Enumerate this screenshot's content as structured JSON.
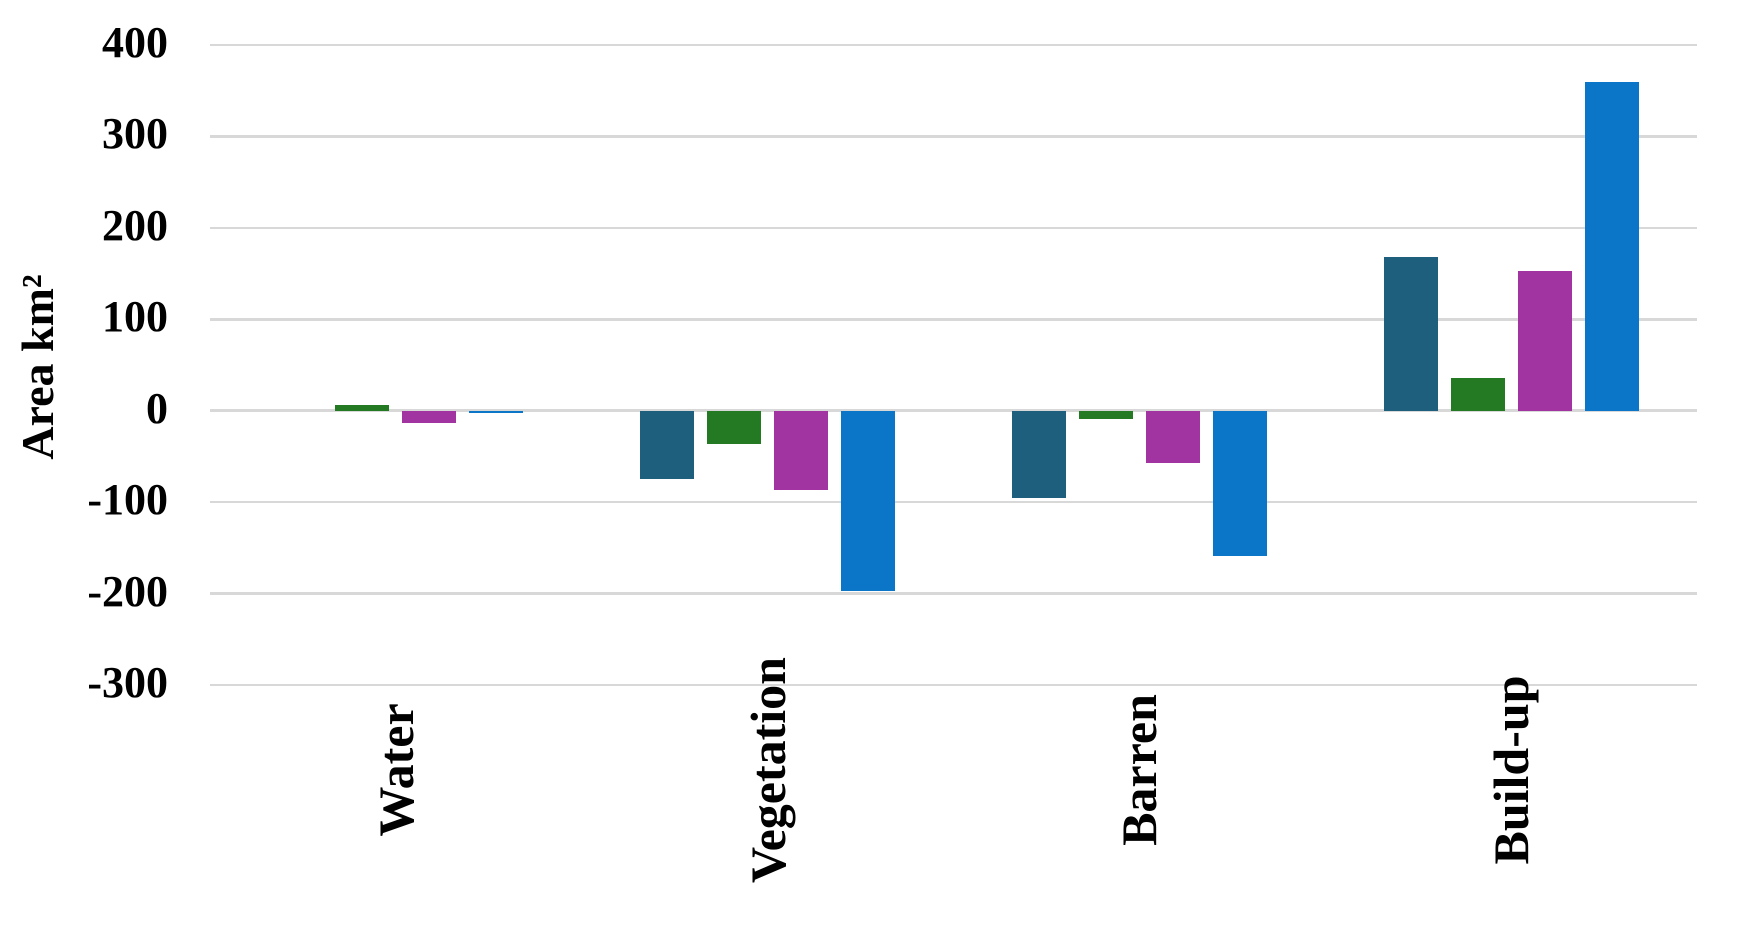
{
  "chart_data": {
    "type": "bar",
    "title": "",
    "xlabel": "",
    "ylabel": "Area km²",
    "categories": [
      "Water",
      "Vegetation",
      "Barren",
      "Build-up"
    ],
    "series": [
      {
        "name": "teal",
        "color": "#1f5f7e",
        "values": [
          0,
          -75,
          -96,
          168
        ]
      },
      {
        "name": "green",
        "color": "#237a23",
        "values": [
          6,
          -36,
          -9,
          36
        ]
      },
      {
        "name": "magenta",
        "color": "#a234a2",
        "values": [
          -13,
          -87,
          -57,
          153
        ]
      },
      {
        "name": "blue",
        "color": "#0b76c8",
        "values": [
          -3,
          -197,
          -159,
          359
        ]
      }
    ],
    "ylim": [
      -300,
      400
    ],
    "yticks": [
      400,
      300,
      200,
      100,
      0,
      -100,
      -200,
      -300
    ],
    "grid": true,
    "legend": false,
    "gridline_color": "#d8d8d8",
    "background": "#ffffff"
  }
}
